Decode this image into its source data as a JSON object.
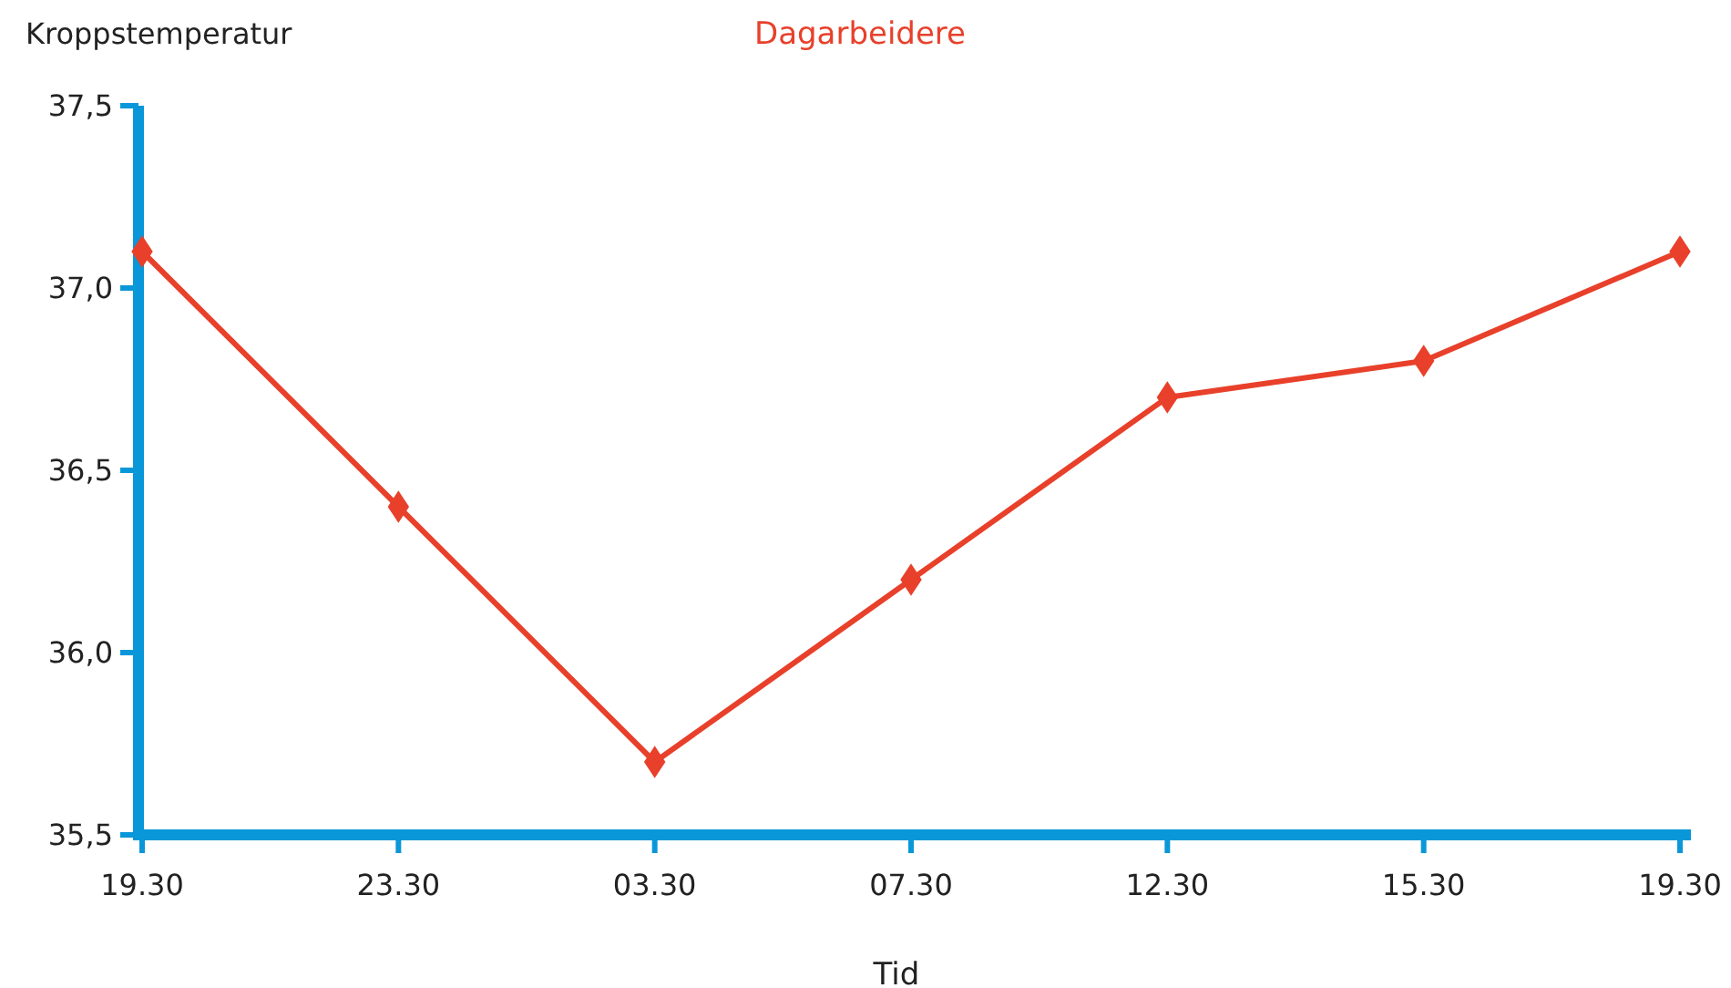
{
  "chart_data": {
    "type": "line",
    "title": "Dagarbeidere",
    "ylabel": "Kroppstemperatur",
    "xlabel": "Tid",
    "categories": [
      "19.30",
      "23.30",
      "03.30",
      "07.30",
      "12.30",
      "15.30",
      "19.30"
    ],
    "series": [
      {
        "color": "#e8402a",
        "values": [
          37.1,
          36.4,
          35.7,
          36.2,
          36.7,
          36.8,
          37.1
        ]
      }
    ],
    "ylim": [
      35.5,
      37.5
    ],
    "yticks": [
      {
        "value": 35.5,
        "label": "35,5"
      },
      {
        "value": 36.0,
        "label": "36,0"
      },
      {
        "value": 36.5,
        "label": "36,5"
      },
      {
        "value": 37.0,
        "label": "37,0"
      },
      {
        "value": 37.5,
        "label": "37,5"
      }
    ],
    "marker": "diamond",
    "line_style": "solid",
    "grid": false
  }
}
